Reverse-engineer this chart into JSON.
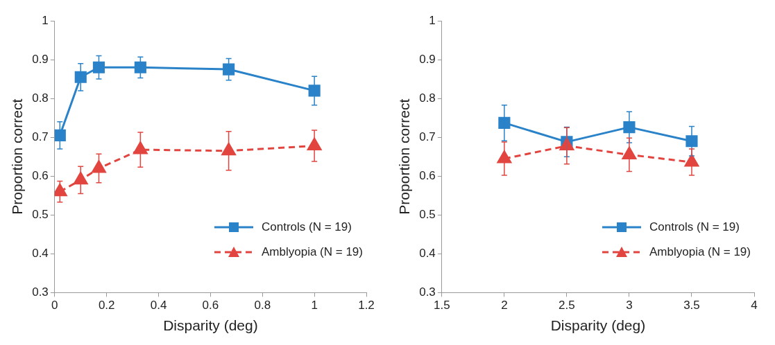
{
  "chart_data": [
    {
      "type": "line",
      "xlabel": "Disparity (deg)",
      "ylabel": "Proportion correct",
      "xlim": [
        0,
        1.2
      ],
      "xticks": [
        0,
        0.2,
        0.4,
        0.6,
        0.8,
        1,
        1.2
      ],
      "ylim": [
        0.3,
        1
      ],
      "yticks": [
        0.3,
        0.4,
        0.5,
        0.6,
        0.7,
        0.8,
        0.9,
        1
      ],
      "grid": false,
      "legend": "bottom right",
      "x": [
        0.02,
        0.1,
        0.17,
        0.33,
        0.67,
        1
      ],
      "series": [
        {
          "name": "Controls (N = 19)",
          "color": "#2a82c9",
          "marker": "square",
          "line_style": "solid",
          "values": [
            0.705,
            0.855,
            0.88,
            0.88,
            0.875,
            0.82
          ],
          "errors": [
            0.035,
            0.035,
            0.03,
            0.027,
            0.028,
            0.037
          ]
        },
        {
          "name": "Amblyopia (N = 19)",
          "color": "#e2453f",
          "marker": "triangle",
          "line_style": "dashed",
          "values": [
            0.56,
            0.59,
            0.62,
            0.668,
            0.665,
            0.678
          ],
          "errors": [
            0.027,
            0.035,
            0.037,
            0.045,
            0.05,
            0.04
          ]
        }
      ]
    },
    {
      "type": "line",
      "xlabel": "Disparity (deg)",
      "ylabel": "Proportion correct",
      "xlim": [
        1.5,
        4
      ],
      "xticks": [
        1.5,
        2,
        2.5,
        3,
        3.5,
        4
      ],
      "ylim": [
        0.3,
        1
      ],
      "yticks": [
        0.3,
        0.4,
        0.5,
        0.6,
        0.7,
        0.8,
        0.9,
        1
      ],
      "grid": false,
      "legend": "bottom right",
      "x": [
        2,
        2.5,
        3,
        3.5
      ],
      "series": [
        {
          "name": "Controls (N = 19)",
          "color": "#2a82c9",
          "marker": "square",
          "line_style": "solid",
          "values": [
            0.737,
            0.688,
            0.726,
            0.69
          ],
          "errors": [
            0.046,
            0.038,
            0.04,
            0.038
          ]
        },
        {
          "name": "Amblyopia (N = 19)",
          "color": "#e2453f",
          "marker": "triangle",
          "line_style": "dashed",
          "values": [
            0.645,
            0.678,
            0.655,
            0.636
          ],
          "errors": [
            0.043,
            0.047,
            0.043,
            0.034
          ]
        }
      ]
    }
  ]
}
